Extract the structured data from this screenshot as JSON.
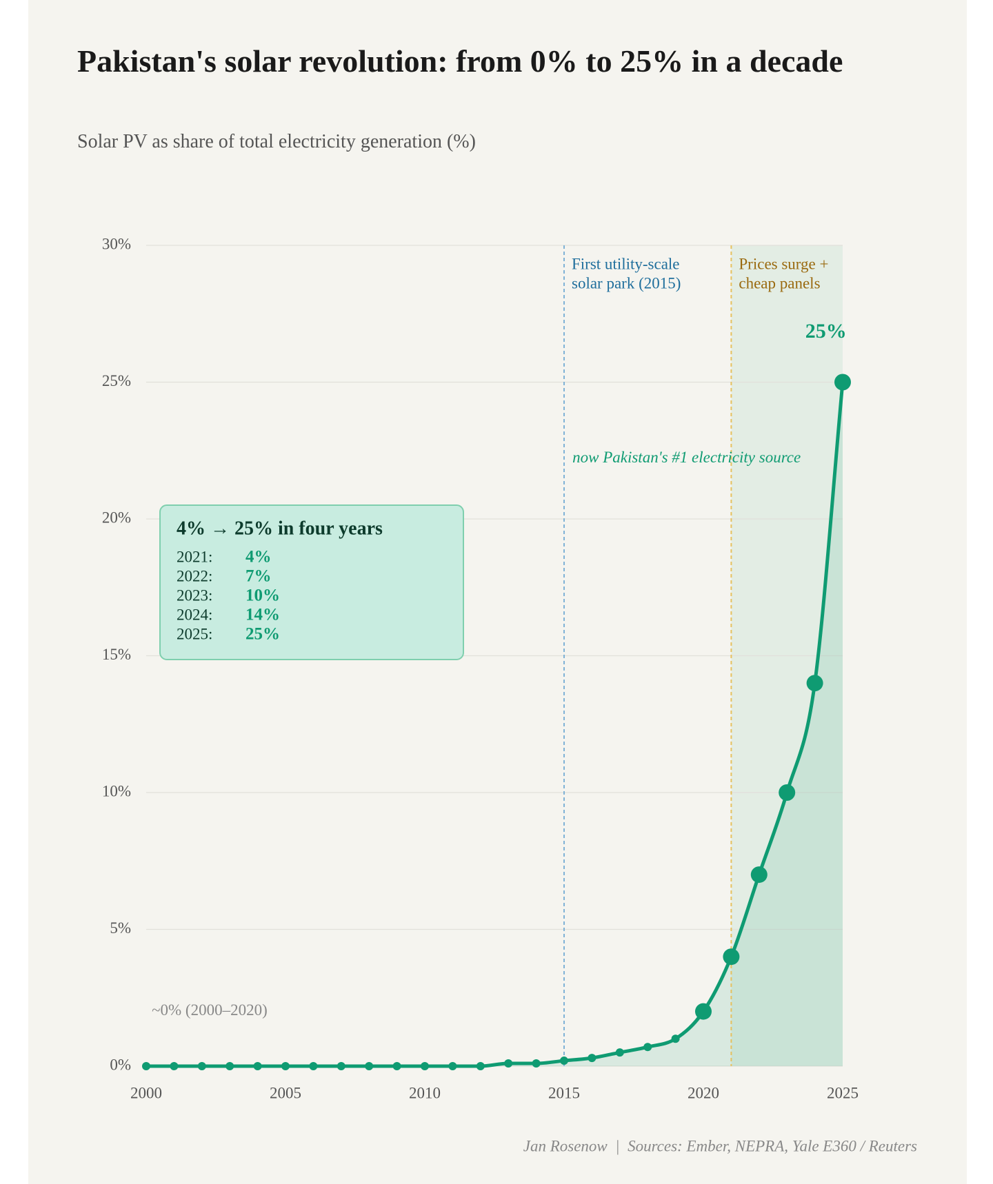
{
  "chart_data": {
    "type": "line",
    "title": "Pakistan's solar revolution: from 0% to 25% in a decade",
    "subtitle": "Solar PV as share of total electricity generation (%)",
    "x": [
      2000,
      2001,
      2002,
      2003,
      2004,
      2005,
      2006,
      2007,
      2008,
      2009,
      2010,
      2011,
      2012,
      2013,
      2014,
      2015,
      2016,
      2017,
      2018,
      2019,
      2020,
      2021,
      2022,
      2023,
      2024,
      2025
    ],
    "series": [
      {
        "name": "Solar PV share",
        "color": "#0f9b72",
        "values": [
          0,
          0,
          0,
          0,
          0,
          0,
          0,
          0,
          0,
          0,
          0,
          0,
          0,
          0.1,
          0.1,
          0.2,
          0.3,
          0.5,
          0.7,
          1,
          2,
          4,
          7,
          10,
          14,
          25
        ]
      }
    ],
    "large_markers_from": 2020,
    "area_color": "#0f9b72",
    "xlim": [
      2000,
      2025
    ],
    "xticks": [
      2000,
      2005,
      2010,
      2015,
      2020,
      2025
    ],
    "ylim": [
      0,
      30
    ],
    "yticks": [
      {
        "value": 0,
        "label": "0%"
      },
      {
        "value": 5,
        "label": "5%"
      },
      {
        "value": 10,
        "label": "10%"
      },
      {
        "value": 15,
        "label": "15%"
      },
      {
        "value": 20,
        "label": "20%"
      },
      {
        "value": 25,
        "label": "25%"
      },
      {
        "value": 30,
        "label": "30%"
      }
    ],
    "grid": true,
    "shade": {
      "from": 2021,
      "to": 2025,
      "color": "#e3ede4"
    },
    "reference_lines": [
      {
        "x": 2015,
        "color": "#7fb2d6",
        "label_color": "#1f6e9c",
        "label": [
          "First utility-scale",
          "solar park (2015)"
        ]
      },
      {
        "x": 2021,
        "color": "#e6c160",
        "label_color": "#9a6a10",
        "label": [
          "Prices surge +",
          "cheap panels"
        ]
      }
    ],
    "annotations": [
      {
        "text": "25%",
        "x": 2024.4,
        "y": 26.8,
        "color": "#0f9b72",
        "style": "bold"
      },
      {
        "text": "now Pakistan's #1 electricity source",
        "x": 2015.3,
        "y": 22.2,
        "color": "#0f9b72",
        "style": "italic"
      },
      {
        "text": "~0% (2000–2020)",
        "x": 2000.2,
        "y": 2,
        "color": "#888888",
        "style": "normal"
      }
    ],
    "box": {
      "title": "4% → 25% in four years",
      "rows": [
        [
          "2021:",
          "4%"
        ],
        [
          "2022:",
          "7%"
        ],
        [
          "2023:",
          "10%"
        ],
        [
          "2024:",
          "14%"
        ],
        [
          "2025:",
          "25%"
        ]
      ]
    },
    "footer": "Jan Rosenow  |  Sources: Ember, NEPRA, Yale E360 / Reuters"
  }
}
